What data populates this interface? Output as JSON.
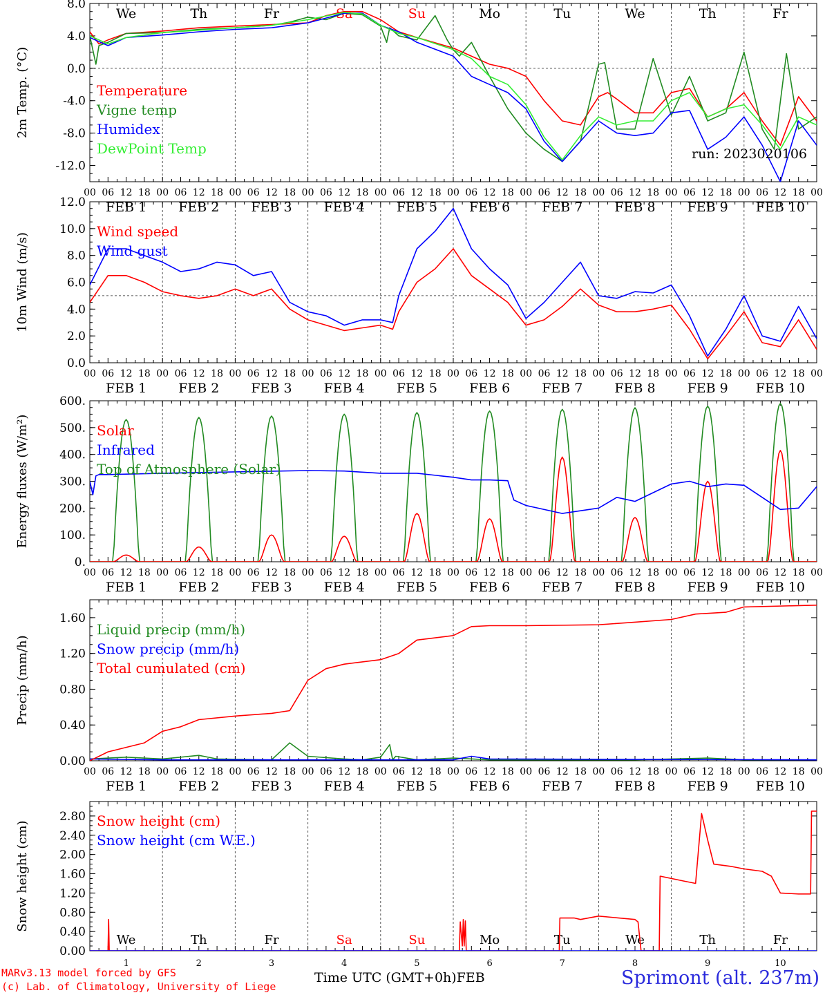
{
  "run": "run: 2023020106",
  "footer": {
    "model": "MARv3.13 model forced by GFS",
    "lab": "(c) Lab. of Climatology, University of Liege",
    "xlabel": "Time UTC (GMT+0h)",
    "xlabel2": "FEB",
    "station": "Sprimont (alt. 237m)"
  },
  "days": [
    {
      "name": "We",
      "color": "#000000",
      "date": "FEB 1",
      "num": "1"
    },
    {
      "name": "Th",
      "color": "#000000",
      "date": "FEB 2",
      "num": "2"
    },
    {
      "name": "Fr",
      "color": "#000000",
      "date": "FEB 3",
      "num": "3"
    },
    {
      "name": "Sa",
      "color": "#ff0000",
      "date": "FEB 4",
      "num": "4"
    },
    {
      "name": "Su",
      "color": "#ff0000",
      "date": "FEB 5",
      "num": "5"
    },
    {
      "name": "Mo",
      "color": "#000000",
      "date": "FEB 6",
      "num": "6"
    },
    {
      "name": "Tu",
      "color": "#000000",
      "date": "FEB 7",
      "num": "7"
    },
    {
      "name": "We",
      "color": "#000000",
      "date": "FEB 8",
      "num": "8"
    },
    {
      "name": "Th",
      "color": "#000000",
      "date": "FEB 9",
      "num": "9"
    },
    {
      "name": "Fr",
      "color": "#000000",
      "date": "FEB 10",
      "num": "10"
    }
  ],
  "hour_labels": [
    "00",
    "06",
    "12",
    "18"
  ],
  "chart_data": [
    {
      "type": "line",
      "ylabel": "2m Temp. (°C)",
      "ylim": [
        -14,
        8
      ],
      "yticks": [
        8,
        4,
        0,
        -4,
        -8,
        -12
      ],
      "ytick_labels": [
        "8.0",
        "4.0",
        "0.0",
        "-4.0",
        "-8.0",
        "-12.0"
      ],
      "dashed_y": 0,
      "x_unit": "hours since FEB 1 00 UTC",
      "series": [
        {
          "name": "Temperature",
          "color": "#ff0000",
          "x": [
            0,
            3,
            6,
            12,
            24,
            36,
            48,
            60,
            72,
            78,
            84,
            90,
            96,
            102,
            108,
            120,
            132,
            138,
            144,
            150,
            156,
            162,
            168,
            171,
            174,
            180,
            186,
            192,
            198,
            204,
            210,
            216,
            222,
            228,
            234,
            240
          ],
          "y": [
            4.5,
            3,
            3.5,
            4.3,
            4.6,
            5,
            5.2,
            5.4,
            5.6,
            6.5,
            7,
            7,
            6,
            4.5,
            3.8,
            2.5,
            0.5,
            0,
            -1,
            -4,
            -6.5,
            -7,
            -3.5,
            -3,
            -3.8,
            -5.5,
            -5.5,
            -3,
            -2.5,
            -6,
            -5,
            -3,
            -6.5,
            -9.5,
            -3.5,
            -6.5
          ]
        },
        {
          "name": "Vigne temp",
          "color": "#228b22",
          "x": [
            0,
            2,
            3,
            6,
            12,
            24,
            36,
            48,
            60,
            66,
            72,
            78,
            84,
            90,
            96,
            98,
            99,
            102,
            108,
            114,
            118,
            120,
            122,
            126,
            132,
            138,
            144,
            150,
            156,
            162,
            168,
            170,
            174,
            180,
            186,
            192,
            198,
            204,
            210,
            216,
            222,
            226,
            230,
            234,
            240
          ],
          "y": [
            4,
            0.5,
            2.8,
            3.2,
            4.3,
            4.4,
            4.8,
            5,
            5.3,
            5.7,
            6.3,
            6,
            6.8,
            6.6,
            5.2,
            3.2,
            5,
            4,
            3.5,
            6.5,
            3.5,
            2.3,
            1.5,
            3.2,
            -1,
            -5,
            -8,
            -10,
            -11.5,
            -9,
            0.5,
            0.7,
            -7.5,
            -7.5,
            1.2,
            -5.8,
            -1,
            -6.5,
            -5.5,
            2,
            -7.5,
            -10,
            1.8,
            -7.5,
            -6
          ]
        },
        {
          "name": "Humidex",
          "color": "#0000ff",
          "x": [
            0,
            6,
            12,
            24,
            36,
            48,
            60,
            72,
            84,
            90,
            96,
            102,
            108,
            120,
            126,
            132,
            138,
            144,
            150,
            156,
            162,
            168,
            174,
            180,
            186,
            192,
            198,
            204,
            210,
            216,
            222,
            228,
            234,
            240
          ],
          "y": [
            3.8,
            2.8,
            3.8,
            4.1,
            4.5,
            4.8,
            5,
            5.6,
            6.8,
            6.8,
            5.3,
            4.5,
            3.2,
            1.5,
            -1,
            -2,
            -3,
            -5,
            -9,
            -11.5,
            -9,
            -6.5,
            -8,
            -8.3,
            -8,
            -5.5,
            -5.2,
            -10,
            -8.5,
            -6,
            -9.5,
            -14,
            -6.5,
            -9.5
          ]
        },
        {
          "name": "DewPoint Temp",
          "color": "#33ee33",
          "x": [
            0,
            6,
            12,
            24,
            36,
            48,
            60,
            72,
            84,
            90,
            96,
            102,
            108,
            120,
            126,
            132,
            138,
            144,
            150,
            156,
            162,
            168,
            174,
            180,
            186,
            192,
            198,
            204,
            210,
            216,
            222,
            228,
            234,
            240
          ],
          "y": [
            4,
            3,
            3.8,
            4.4,
            4.7,
            5,
            5.3,
            6,
            6.9,
            6.7,
            5.3,
            4.3,
            3.8,
            2.3,
            1.2,
            -1,
            -2,
            -4.5,
            -8.5,
            -11.3,
            -8.3,
            -6,
            -7,
            -6.5,
            -6.5,
            -4,
            -3,
            -6,
            -5,
            -4.5,
            -7,
            -10,
            -6,
            -7
          ]
        }
      ]
    },
    {
      "type": "line",
      "ylabel": "10m Wind (m/s)",
      "ylim": [
        0,
        12
      ],
      "yticks": [
        12,
        10,
        8,
        6,
        4,
        2,
        0
      ],
      "ytick_labels": [
        "12.0",
        "10.0",
        "8.0",
        "6.0",
        "4.0",
        "2.0",
        "0.0"
      ],
      "dashed_y": 5,
      "x_unit": "hours since FEB 1 00 UTC",
      "series": [
        {
          "name": "Wind speed",
          "color": "#ff0000",
          "x": [
            0,
            6,
            12,
            18,
            24,
            30,
            36,
            42,
            48,
            54,
            60,
            66,
            72,
            78,
            84,
            90,
            96,
            100,
            102,
            108,
            114,
            120,
            126,
            132,
            138,
            144,
            150,
            156,
            162,
            168,
            174,
            180,
            186,
            192,
            198,
            204,
            210,
            216,
            222,
            228,
            234,
            240
          ],
          "y": [
            4.5,
            6.5,
            6.5,
            6,
            5.3,
            5,
            4.8,
            5,
            5.5,
            5,
            5.5,
            4,
            3.2,
            2.8,
            2.4,
            2.6,
            2.8,
            2.5,
            3.8,
            6,
            7,
            8.5,
            6.5,
            5.5,
            4.5,
            2.8,
            3.2,
            4.2,
            5.5,
            4.3,
            3.8,
            3.8,
            4,
            4.3,
            2.5,
            0.3,
            2,
            3.8,
            1.5,
            1.2,
            3.2,
            1
          ]
        },
        {
          "name": "Wind gust",
          "color": "#0000ff",
          "x": [
            0,
            6,
            12,
            18,
            24,
            30,
            36,
            42,
            48,
            54,
            60,
            66,
            72,
            78,
            84,
            90,
            96,
            100,
            102,
            108,
            114,
            120,
            126,
            132,
            138,
            144,
            150,
            156,
            162,
            168,
            174,
            180,
            186,
            192,
            198,
            204,
            210,
            216,
            222,
            228,
            234,
            240
          ],
          "y": [
            5.8,
            8.5,
            8.5,
            8,
            7.5,
            6.8,
            7,
            7.5,
            7.3,
            6.5,
            6.8,
            4.5,
            3.8,
            3.5,
            2.8,
            3.2,
            3.2,
            3,
            5,
            8.5,
            9.8,
            11.5,
            8.5,
            7,
            5.8,
            3.3,
            4.5,
            6,
            7.5,
            5,
            4.8,
            5.3,
            5.2,
            5.8,
            3.5,
            0.5,
            2.5,
            5,
            2,
            1.6,
            4.2,
            1.8
          ]
        }
      ]
    },
    {
      "type": "line",
      "ylabel": "Energy fluxes (W/m²)",
      "ylim": [
        0,
        600
      ],
      "yticks": [
        600,
        500,
        400,
        300,
        200,
        100,
        0
      ],
      "ytick_labels": [
        "600.",
        "500.",
        "400.",
        "300.",
        "200.",
        "100.",
        "0."
      ],
      "x_unit": "hours since FEB 1 00 UTC",
      "diurnal": {
        "sunrise_hour": 7.8,
        "sunset_hour": 16.2,
        "toa_peaks": [
          530,
          538,
          543,
          550,
          556,
          562,
          568,
          574,
          580,
          590
        ],
        "solar_peaks": [
          25,
          55,
          100,
          95,
          180,
          160,
          390,
          165,
          300,
          415
        ]
      },
      "series": [
        {
          "name": "Solar",
          "color": "#ff0000"
        },
        {
          "name": "Infrared",
          "color": "#0000ff",
          "x": [
            0,
            1,
            2,
            3,
            6,
            24,
            48,
            72,
            84,
            96,
            108,
            120,
            126,
            132,
            138,
            140,
            144,
            156,
            168,
            174,
            180,
            192,
            198,
            204,
            210,
            216,
            222,
            228,
            234,
            240
          ],
          "y": [
            300,
            250,
            320,
            325,
            325,
            330,
            335,
            340,
            338,
            330,
            330,
            315,
            305,
            305,
            302,
            230,
            210,
            180,
            200,
            240,
            225,
            290,
            300,
            280,
            290,
            285,
            240,
            195,
            200,
            280
          ]
        },
        {
          "name": "Top of Atmosphere (Solar)",
          "color": "#228b22"
        }
      ]
    },
    {
      "type": "line",
      "ylabel": "Precip (mm/h)",
      "ylim": [
        0,
        1.8
      ],
      "yticks": [
        1.6,
        1.2,
        0.8,
        0.4,
        0
      ],
      "ytick_labels": [
        "1.60",
        "1.20",
        "0.80",
        "0.40",
        "0.00"
      ],
      "x_unit": "hours since FEB 1 00 UTC",
      "series": [
        {
          "name": "Liquid precip (mm/h)",
          "color": "#228b22",
          "x": [
            0,
            12,
            24,
            36,
            42,
            60,
            66,
            72,
            84,
            90,
            96,
            99,
            100,
            101,
            108,
            120,
            132,
            144,
            180,
            192,
            204,
            216,
            240
          ],
          "y": [
            0.02,
            0.04,
            0.02,
            0.06,
            0.02,
            0.01,
            0.2,
            0.05,
            0.02,
            0.01,
            0.04,
            0.18,
            0.01,
            0.05,
            0.01,
            0.03,
            0.01,
            0.01,
            0.01,
            0.02,
            0.03,
            0.01,
            0.01
          ]
        },
        {
          "name": "Snow precip (mm/h)",
          "color": "#0000ff",
          "x": [
            0,
            24,
            120,
            126,
            132,
            240
          ],
          "y": [
            0.02,
            0.01,
            0.01,
            0.05,
            0.02,
            0.01
          ]
        },
        {
          "name": "Total cumulated (cm)",
          "color": "#ff0000",
          "x": [
            0,
            6,
            12,
            18,
            24,
            30,
            36,
            48,
            60,
            66,
            72,
            78,
            84,
            96,
            102,
            108,
            120,
            126,
            132,
            144,
            168,
            180,
            192,
            200,
            210,
            216,
            240
          ],
          "y": [
            0,
            0.1,
            0.15,
            0.2,
            0.33,
            0.38,
            0.46,
            0.5,
            0.53,
            0.56,
            0.9,
            1.03,
            1.08,
            1.13,
            1.2,
            1.35,
            1.4,
            1.5,
            1.51,
            1.51,
            1.52,
            1.55,
            1.58,
            1.64,
            1.66,
            1.72,
            1.74
          ]
        }
      ]
    },
    {
      "type": "line",
      "ylabel": "Snow height (cm)",
      "ylim": [
        0,
        3.1
      ],
      "yticks": [
        2.8,
        2.4,
        2.0,
        1.6,
        1.2,
        0.8,
        0.4,
        0
      ],
      "ytick_labels": [
        "2.80",
        "2.40",
        "2.00",
        "1.60",
        "1.20",
        "0.80",
        "0.40",
        "0.00"
      ],
      "x_unit": "hours since FEB 1 00 UTC",
      "series": [
        {
          "name": "Snow height (cm)",
          "color": "#ff0000",
          "x": [
            0,
            6,
            6.2,
            6.4,
            122,
            122.3,
            123,
            123.3,
            123.6,
            124,
            124.3,
            155,
            155.2,
            160,
            162,
            168,
            180,
            181,
            182,
            186,
            188,
            188.3,
            196,
            200,
            202,
            204,
            206,
            212,
            216,
            222,
            225,
            228,
            234,
            238,
            238.3,
            240
          ],
          "y": [
            0,
            0,
            0.65,
            0,
            0,
            0.6,
            0.1,
            0.65,
            0.1,
            0.62,
            0,
            0,
            0.68,
            0.68,
            0.65,
            0.72,
            0.65,
            0.6,
            0,
            0,
            0,
            1.55,
            1.45,
            1.4,
            2.85,
            2.3,
            1.8,
            1.75,
            1.7,
            1.65,
            1.55,
            1.2,
            1.18,
            1.18,
            2.9,
            2.9
          ]
        },
        {
          "name": "Snow height (cm W.E.)",
          "color": "#0000ff",
          "x": [
            0,
            240
          ],
          "y": [
            0,
            0
          ]
        }
      ]
    }
  ]
}
